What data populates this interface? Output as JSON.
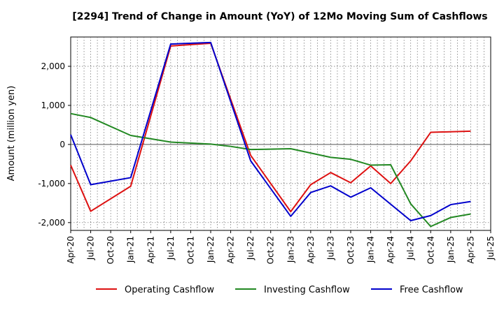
{
  "chart_data": {
    "type": "line",
    "title": "[2294]  Trend of Change in Amount (YoY) of 12Mo Moving Sum of Cashflows",
    "xlabel": "",
    "ylabel": "Amount (million yen)",
    "ylim": [
      -2200,
      2750
    ],
    "yticks": [
      2000,
      1000,
      0,
      -1000,
      -2000
    ],
    "ytick_labels": [
      "2,000",
      "1,000",
      "0",
      "-1,000",
      "-2,000"
    ],
    "x_ticks": [
      "Apr-20",
      "Jul-20",
      "Oct-20",
      "Jan-21",
      "Apr-21",
      "Jul-21",
      "Oct-21",
      "Jan-22",
      "Apr-22",
      "Jul-22",
      "Oct-22",
      "Jan-23",
      "Apr-23",
      "Jul-23",
      "Oct-23",
      "Jan-24",
      "Apr-24",
      "Jul-24",
      "Oct-24",
      "Jan-25",
      "Apr-25",
      "Jul-25"
    ],
    "grid": true,
    "legend_position": "bottom",
    "series": [
      {
        "name": "Operating Cashflow",
        "color": "#dd1111",
        "points": [
          [
            0,
            -530
          ],
          [
            1,
            -1710
          ],
          [
            3,
            -1070
          ],
          [
            5,
            2520
          ],
          [
            7,
            2590
          ],
          [
            9,
            -280
          ],
          [
            11,
            -1720
          ],
          [
            12,
            -1030
          ],
          [
            13,
            -720
          ],
          [
            14,
            -980
          ],
          [
            15,
            -550
          ],
          [
            16,
            -1000
          ],
          [
            17,
            -420
          ],
          [
            18,
            310
          ],
          [
            20,
            340
          ]
        ]
      },
      {
        "name": "Investing Cashflow",
        "color": "#228822",
        "points": [
          [
            0,
            790
          ],
          [
            1,
            690
          ],
          [
            3,
            230
          ],
          [
            5,
            60
          ],
          [
            7,
            10
          ],
          [
            8,
            -50
          ],
          [
            9,
            -130
          ],
          [
            11,
            -110
          ],
          [
            13,
            -330
          ],
          [
            14,
            -380
          ],
          [
            15,
            -530
          ],
          [
            16,
            -520
          ],
          [
            17,
            -1520
          ],
          [
            18,
            -2100
          ],
          [
            19,
            -1870
          ],
          [
            20,
            -1780
          ]
        ]
      },
      {
        "name": "Free Cashflow",
        "color": "#0000cc",
        "points": [
          [
            0,
            250
          ],
          [
            1,
            -1030
          ],
          [
            3,
            -850
          ],
          [
            5,
            2570
          ],
          [
            7,
            2610
          ],
          [
            9,
            -420
          ],
          [
            11,
            -1840
          ],
          [
            12,
            -1230
          ],
          [
            13,
            -1060
          ],
          [
            14,
            -1350
          ],
          [
            15,
            -1110
          ],
          [
            16,
            -1530
          ],
          [
            17,
            -1950
          ],
          [
            18,
            -1820
          ],
          [
            19,
            -1540
          ],
          [
            20,
            -1460
          ]
        ]
      }
    ]
  }
}
